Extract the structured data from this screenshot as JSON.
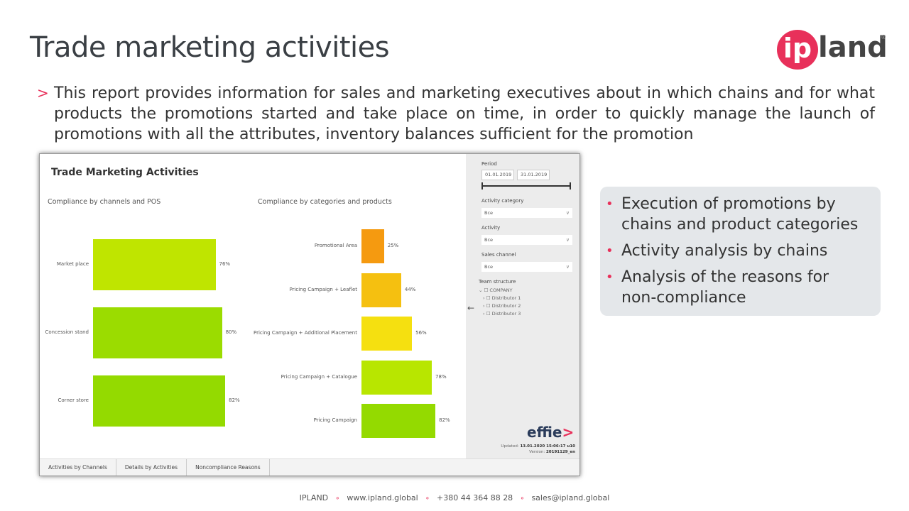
{
  "slide": {
    "title": "Trade marketing activities",
    "intro": "This report provides information for sales and marketing executives about in which chains and for what products the promotions started and take place on time, in order to quickly manage the launch of promotions with all the attributes, inventory balances sufficient for the promotion",
    "logo": {
      "prefix": "ip",
      "rest": "land",
      "reg": "®"
    }
  },
  "report": {
    "title": "Trade Marketing Activities",
    "tabs": [
      "Activities by Channels",
      "Details by Activities",
      "Noncompliance Reasons"
    ],
    "filters": {
      "period_label": "Period",
      "date_from": "01.01.2019",
      "date_to": "31.01.2019",
      "activity_category_label": "Activity category",
      "activity_category_value": "Все",
      "activity_label": "Activity",
      "activity_value": "Все",
      "sales_channel_label": "Sales channel",
      "sales_channel_value": "Все",
      "team_structure_label": "Team structure",
      "tree": [
        "COMPANY",
        "Distributor 1",
        "Distributor 2",
        "Distributor 3"
      ]
    },
    "brand": {
      "name": "effie",
      "arrow": ">"
    },
    "updated_label": "Updated:",
    "updated_value": "13.01.2020 15:06:17 u10",
    "version_label": "Version:",
    "version_value": "20191129_en"
  },
  "chart_data": [
    {
      "type": "bar",
      "orientation": "horizontal",
      "title": "Compliance by channels and POS",
      "categories": [
        "Market place",
        "Concession stand",
        "Corner store"
      ],
      "values": [
        76,
        80,
        82
      ],
      "value_labels": [
        "76%",
        "80%",
        "82%"
      ],
      "colors": [
        "#bfe500",
        "#9bdc00",
        "#94da00"
      ]
    },
    {
      "type": "bar",
      "orientation": "horizontal",
      "title": "Compliance by categories and products",
      "categories": [
        "Promotional Area",
        "Pricing Campaign + Leaflet",
        "Pricing Campaign + Additional Placement",
        "Pricing Campaign + Catalogue",
        "Pricing Campaign"
      ],
      "values": [
        25,
        44,
        56,
        78,
        82
      ],
      "value_labels": [
        "25%",
        "44%",
        "56%",
        "78%",
        "82%"
      ],
      "colors": [
        "#f59a10",
        "#f5c010",
        "#f5e010",
        "#b8e600",
        "#94da00"
      ]
    }
  ],
  "bullets": [
    "Execution of promotions by chains and product categories",
    "Activity analysis by chains",
    "Analysis of the reasons for non-compliance"
  ],
  "footer": {
    "company": "IPLAND",
    "website": "www.ipland.global",
    "phone": "+380 44 364 88 28",
    "email": "sales@ipland.global"
  }
}
